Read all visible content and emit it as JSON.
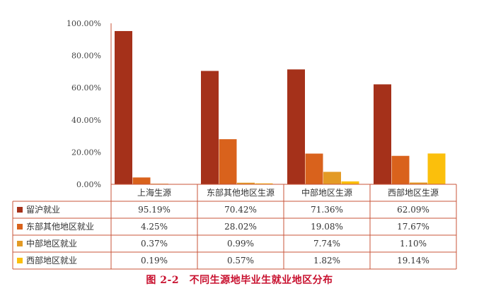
{
  "chart_data": {
    "type": "bar",
    "title": "",
    "xlabel": "",
    "ylabel": "",
    "ylim": [
      0,
      100
    ],
    "y_ticks": [
      "0.00%",
      "20.00%",
      "40.00%",
      "60.00%",
      "80.00%",
      "100.00%"
    ],
    "categories": [
      "上海生源",
      "东部其他地区生源",
      "中部地区生源",
      "西部地区生源"
    ],
    "series": [
      {
        "name": "留沪就业",
        "values": [
          95.19,
          70.42,
          71.36,
          62.09
        ],
        "labels": [
          "95.19%",
          "70.42%",
          "71.36%",
          "62.09%"
        ],
        "color": "#a5311a"
      },
      {
        "name": "东部其他地区就业",
        "values": [
          4.25,
          28.02,
          19.08,
          17.67
        ],
        "labels": [
          "4.25%",
          "28.02%",
          "19.08%",
          "17.67%"
        ],
        "color": "#d9621c"
      },
      {
        "name": "中部地区就业",
        "values": [
          0.37,
          0.99,
          7.74,
          1.1
        ],
        "labels": [
          "0.37%",
          "0.99%",
          "7.74%",
          "1.10%"
        ],
        "color": "#e39a25"
      },
      {
        "name": "西部地区就业",
        "values": [
          0.19,
          0.57,
          1.82,
          19.14
        ],
        "labels": [
          "0.19%",
          "0.57%",
          "1.82%",
          "19.14%"
        ],
        "color": "#fbbf0c"
      }
    ],
    "legend_position": "data-table-left",
    "grid": false
  },
  "caption": "图 2-2　不同生源地毕业生就业地区分布",
  "colors": {
    "table_border": "#c8543a",
    "caption": "#c8102e",
    "axis_text": "#444444"
  }
}
